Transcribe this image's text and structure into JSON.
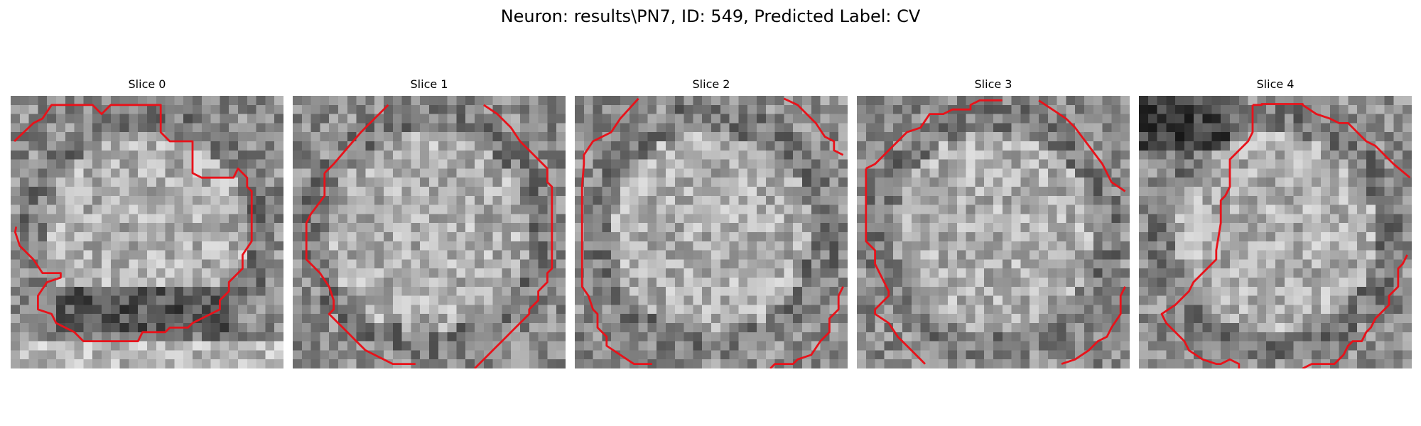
{
  "figure": {
    "title": "Neuron: results\\PN7, ID: 549, Predicted Label: CV"
  },
  "slices": [
    {
      "label": "Slice 0"
    },
    {
      "label": "Slice 1"
    },
    {
      "label": "Slice 2"
    },
    {
      "label": "Slice 3"
    },
    {
      "label": "Slice 4"
    }
  ],
  "contour_color": "#e8121a"
}
